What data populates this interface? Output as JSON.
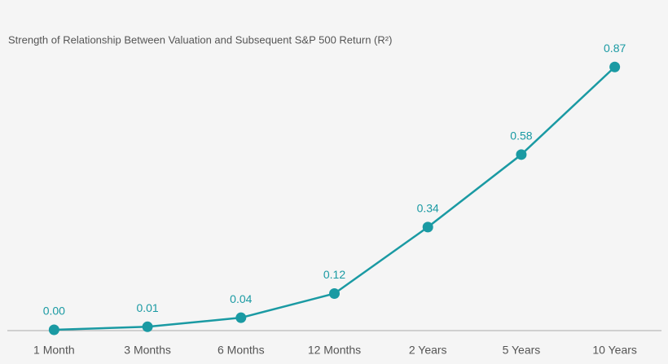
{
  "chart_data": {
    "type": "line",
    "title": "Strength of Relationship Between Valuation and Subsequent S&P 500 Return (R²)",
    "categories": [
      "1 Month",
      "3 Months",
      "6 Months",
      "12 Months",
      "2 Years",
      "5 Years",
      "10 Years"
    ],
    "values": [
      0,
      0.01,
      0.04,
      0.12,
      0.34,
      0.58,
      0.87
    ],
    "value_labels": [
      "0.00",
      "0.01",
      "0.04",
      "0.12",
      "0.34",
      "0.58",
      "0.87"
    ],
    "color": "#1a9aa3",
    "ylim": [
      0,
      1
    ]
  }
}
